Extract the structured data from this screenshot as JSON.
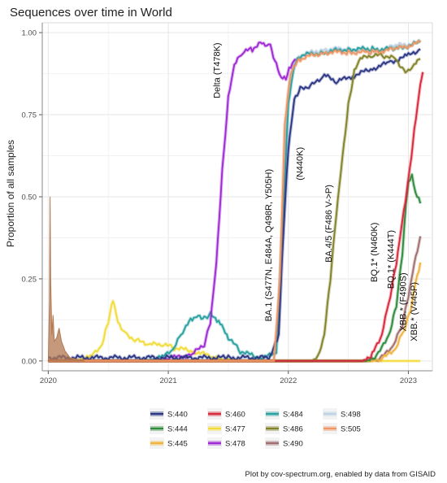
{
  "chart_data": {
    "type": "line",
    "title": "Sequences over time in World",
    "xlabel": "",
    "ylabel": "Proportion of all samples",
    "xlim": [
      2019.95,
      2023.2
    ],
    "ylim": [
      -0.03,
      1.03
    ],
    "x_ticks": [
      {
        "value": 2020,
        "label": "2020"
      },
      {
        "value": 2021,
        "label": "2021"
      },
      {
        "value": 2022,
        "label": "2022"
      },
      {
        "value": 2023,
        "label": "2023"
      }
    ],
    "y_ticks": [
      {
        "value": 0,
        "label": "0.00"
      },
      {
        "value": 0.25,
        "label": "0.25"
      },
      {
        "value": 0.5,
        "label": "0.50"
      },
      {
        "value": 0.75,
        "label": "0.75"
      },
      {
        "value": 1,
        "label": "1.00"
      }
    ],
    "grid": true,
    "legend_position": "bottom",
    "series": [
      {
        "name": "S:440",
        "color": "#2a3584",
        "points": [
          [
            2020.0,
            0.01
          ],
          [
            2021.5,
            0.01
          ],
          [
            2021.85,
            0.01
          ],
          [
            2021.92,
            0.08
          ],
          [
            2021.96,
            0.4
          ],
          [
            2022.0,
            0.65
          ],
          [
            2022.05,
            0.8
          ],
          [
            2022.1,
            0.83
          ],
          [
            2022.2,
            0.84
          ],
          [
            2022.3,
            0.87
          ],
          [
            2022.4,
            0.85
          ],
          [
            2022.55,
            0.87
          ],
          [
            2022.7,
            0.89
          ],
          [
            2022.85,
            0.91
          ],
          [
            2023.0,
            0.93
          ],
          [
            2023.1,
            0.95
          ]
        ]
      },
      {
        "name": "S:444",
        "color": "#2e8b3c",
        "points": [
          [
            2020.0,
            0.0
          ],
          [
            2022.65,
            0.0
          ],
          [
            2022.75,
            0.02
          ],
          [
            2022.85,
            0.09
          ],
          [
            2022.9,
            0.17
          ],
          [
            2022.95,
            0.33
          ],
          [
            2022.98,
            0.48
          ],
          [
            2023.0,
            0.54
          ],
          [
            2023.03,
            0.56
          ],
          [
            2023.06,
            0.51
          ],
          [
            2023.1,
            0.48
          ]
        ]
      },
      {
        "name": "S:445",
        "color": "#f0b43c",
        "points": [
          [
            2020.0,
            0.0
          ],
          [
            2022.7,
            0.0
          ],
          [
            2022.8,
            0.01
          ],
          [
            2022.9,
            0.04
          ],
          [
            2022.97,
            0.1
          ],
          [
            2023.02,
            0.16
          ],
          [
            2023.06,
            0.24
          ],
          [
            2023.1,
            0.3
          ]
        ]
      },
      {
        "name": "S:460",
        "color": "#d7283c",
        "points": [
          [
            2020.0,
            0.0
          ],
          [
            2022.62,
            0.0
          ],
          [
            2022.7,
            0.02
          ],
          [
            2022.78,
            0.08
          ],
          [
            2022.85,
            0.2
          ],
          [
            2022.9,
            0.3
          ],
          [
            2022.95,
            0.43
          ],
          [
            2023.0,
            0.55
          ],
          [
            2023.05,
            0.7
          ],
          [
            2023.1,
            0.84
          ],
          [
            2023.12,
            0.88
          ]
        ]
      },
      {
        "name": "S:477",
        "color": "#f2dc3c",
        "points": [
          [
            2020.0,
            0.0
          ],
          [
            2020.2,
            0.0
          ],
          [
            2020.35,
            0.01
          ],
          [
            2020.45,
            0.05
          ],
          [
            2020.5,
            0.12
          ],
          [
            2020.54,
            0.19
          ],
          [
            2020.58,
            0.12
          ],
          [
            2020.65,
            0.08
          ],
          [
            2020.75,
            0.06
          ],
          [
            2020.85,
            0.05
          ],
          [
            2020.95,
            0.05
          ],
          [
            2021.05,
            0.04
          ],
          [
            2021.2,
            0.03
          ],
          [
            2021.4,
            0.01
          ],
          [
            2021.6,
            0.0
          ],
          [
            2023.1,
            0.0
          ]
        ]
      },
      {
        "name": "S:478",
        "color": "#9e28d2",
        "points": [
          [
            2020.0,
            0.0
          ],
          [
            2020.9,
            0.0
          ],
          [
            2021.05,
            0.01
          ],
          [
            2021.2,
            0.02
          ],
          [
            2021.3,
            0.05
          ],
          [
            2021.35,
            0.12
          ],
          [
            2021.4,
            0.3
          ],
          [
            2021.45,
            0.58
          ],
          [
            2021.5,
            0.8
          ],
          [
            2021.55,
            0.9
          ],
          [
            2021.62,
            0.94
          ],
          [
            2021.7,
            0.95
          ],
          [
            2021.78,
            0.97
          ],
          [
            2021.85,
            0.96
          ],
          [
            2021.9,
            0.9
          ],
          [
            2021.94,
            0.86
          ],
          [
            2021.98,
            0.86
          ],
          [
            2022.02,
            0.9
          ],
          [
            2022.06,
            0.92
          ]
        ]
      },
      {
        "name": "S:484",
        "color": "#28a0a0",
        "points": [
          [
            2020.0,
            0.0
          ],
          [
            2020.8,
            0.0
          ],
          [
            2020.95,
            0.01
          ],
          [
            2021.05,
            0.04
          ],
          [
            2021.12,
            0.09
          ],
          [
            2021.2,
            0.13
          ],
          [
            2021.25,
            0.14
          ],
          [
            2021.3,
            0.13
          ],
          [
            2021.35,
            0.14
          ],
          [
            2021.42,
            0.12
          ],
          [
            2021.5,
            0.07
          ],
          [
            2021.6,
            0.03
          ],
          [
            2021.75,
            0.01
          ],
          [
            2021.9,
            0.02
          ],
          [
            2021.95,
            0.4
          ],
          [
            2022.0,
            0.78
          ],
          [
            2022.05,
            0.9
          ],
          [
            2022.1,
            0.93
          ],
          [
            2022.3,
            0.94
          ],
          [
            2022.5,
            0.95
          ],
          [
            2022.7,
            0.95
          ],
          [
            2022.9,
            0.95
          ],
          [
            2023.1,
            0.97
          ]
        ]
      },
      {
        "name": "S:486",
        "color": "#828228",
        "points": [
          [
            2020.0,
            0.0
          ],
          [
            2022.2,
            0.0
          ],
          [
            2022.26,
            0.02
          ],
          [
            2022.3,
            0.08
          ],
          [
            2022.35,
            0.25
          ],
          [
            2022.4,
            0.45
          ],
          [
            2022.45,
            0.62
          ],
          [
            2022.5,
            0.78
          ],
          [
            2022.55,
            0.88
          ],
          [
            2022.6,
            0.92
          ],
          [
            2022.7,
            0.93
          ],
          [
            2022.8,
            0.93
          ],
          [
            2022.9,
            0.92
          ],
          [
            2022.95,
            0.89
          ],
          [
            2023.0,
            0.88
          ],
          [
            2023.05,
            0.9
          ],
          [
            2023.1,
            0.92
          ]
        ]
      },
      {
        "name": "S:490",
        "color": "#a06e6e",
        "points": [
          [
            2020.0,
            0.0
          ],
          [
            2022.68,
            0.0
          ],
          [
            2022.78,
            0.01
          ],
          [
            2022.88,
            0.05
          ],
          [
            2022.95,
            0.11
          ],
          [
            2023.0,
            0.2
          ],
          [
            2023.05,
            0.3
          ],
          [
            2023.1,
            0.38
          ]
        ]
      },
      {
        "name": "S:498",
        "color": "#bed2e6",
        "points": [
          [
            2020.0,
            0.0
          ],
          [
            2021.88,
            0.0
          ],
          [
            2021.93,
            0.2
          ],
          [
            2021.98,
            0.7
          ],
          [
            2022.02,
            0.88
          ],
          [
            2022.1,
            0.93
          ],
          [
            2022.3,
            0.95
          ],
          [
            2022.5,
            0.95
          ],
          [
            2022.7,
            0.94
          ],
          [
            2022.9,
            0.96
          ],
          [
            2023.1,
            0.97
          ]
        ]
      },
      {
        "name": "S:505",
        "color": "#f09664",
        "points": [
          [
            2020.0,
            0.0
          ],
          [
            2021.88,
            0.0
          ],
          [
            2021.93,
            0.25
          ],
          [
            2021.97,
            0.72
          ],
          [
            2022.02,
            0.88
          ],
          [
            2022.1,
            0.92
          ],
          [
            2022.3,
            0.94
          ],
          [
            2022.5,
            0.94
          ],
          [
            2022.7,
            0.94
          ],
          [
            2022.9,
            0.95
          ],
          [
            2023.1,
            0.97
          ]
        ]
      }
    ],
    "early_spike": {
      "color": "#b27850",
      "points": [
        [
          2020.0,
          0.0
        ],
        [
          2020.01,
          0.18
        ],
        [
          2020.015,
          0.5
        ],
        [
          2020.02,
          0.25
        ],
        [
          2020.03,
          0.08
        ],
        [
          2020.04,
          0.14
        ],
        [
          2020.05,
          0.06
        ],
        [
          2020.07,
          0.07
        ],
        [
          2020.09,
          0.1
        ],
        [
          2020.11,
          0.06
        ],
        [
          2020.14,
          0.03
        ],
        [
          2020.18,
          0.01
        ],
        [
          2020.3,
          0.0
        ]
      ]
    },
    "annotations": [
      {
        "text": "Delta (T478K)",
        "x": 2021.43,
        "y": 0.8
      },
      {
        "text": "BA.1 (S477N, E484A, Q498R, Y505H)",
        "x": 2021.86,
        "y": 0.12
      },
      {
        "text": "(N440K)",
        "x": 2022.12,
        "y": 0.55
      },
      {
        "text": "BA.4/5 (F486 V->P)",
        "x": 2022.36,
        "y": 0.3
      },
      {
        "text": "BQ.1* (N460K)",
        "x": 2022.74,
        "y": 0.24
      },
      {
        "text": "BQ.1* (K444T)",
        "x": 2022.88,
        "y": 0.22
      },
      {
        "text": "XBB.* (F490S)",
        "x": 2022.98,
        "y": 0.09
      },
      {
        "text": "XBB.* (V445P)",
        "x": 2023.07,
        "y": 0.06
      }
    ]
  },
  "caption": "Plot by cov-spectrum.org, enabled by data from GISAID"
}
